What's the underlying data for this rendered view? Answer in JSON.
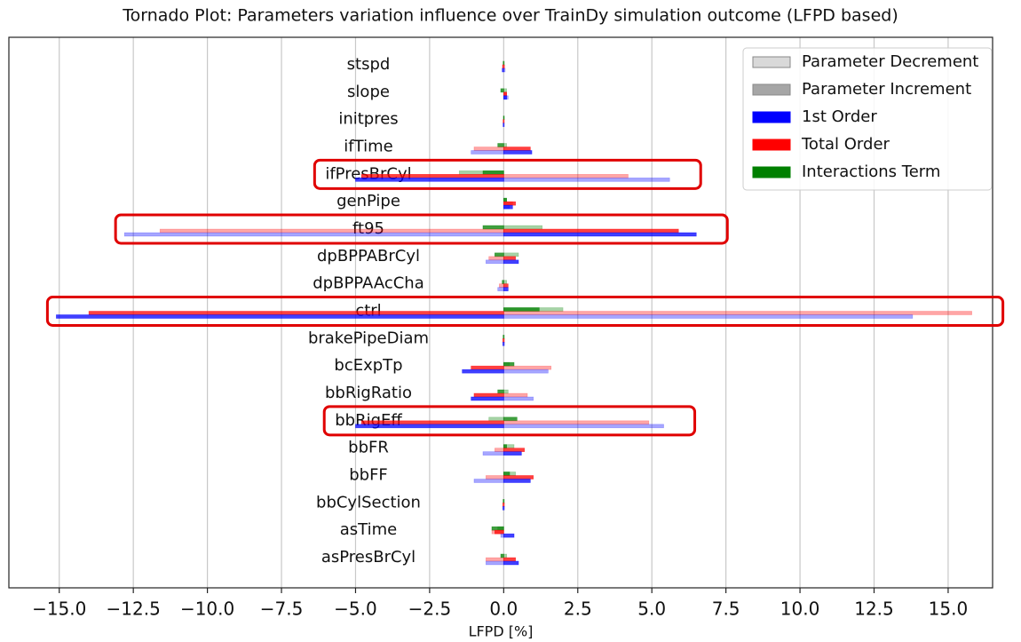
{
  "chart_data": {
    "type": "tornado",
    "title": "Tornado Plot: Parameters variation influence over TrainDy simulation outcome (LFPD based)",
    "x_label": "LFPD [%]",
    "categories": [
      "stspd",
      "slope",
      "initpres",
      "ifTime",
      "ifPresBrCyl",
      "genPipe",
      "ft95",
      "dpBPPABrCyl",
      "dpBPPAAcCha",
      "ctrl",
      "brakePipeDiam",
      "bcExpTp",
      "bbRigRatio",
      "bbRigEff",
      "bbFR",
      "bbFF",
      "bbCylSection",
      "asTime",
      "asPresBrCyl"
    ],
    "variations": [
      {
        "name": "Parameter Decrement",
        "color": "#d9d9d9",
        "opacity": 0.35,
        "key": "decrement"
      },
      {
        "name": "Parameter Increment",
        "color": "#a6a6a6",
        "opacity": 0.75,
        "key": "increment"
      }
    ],
    "series": [
      {
        "name": "1st Order",
        "color": "#0000ff",
        "decrement": [
          0.05,
          0.15,
          0.02,
          -1.1,
          5.6,
          0.2,
          -12.8,
          -0.6,
          -0.2,
          13.8,
          0.03,
          1.5,
          1.0,
          5.4,
          -0.7,
          -1.0,
          0.03,
          -0.1,
          -0.6
        ],
        "increment": [
          -0.05,
          0.1,
          -0.02,
          0.95,
          -5.0,
          0.3,
          6.5,
          0.5,
          0.15,
          -15.1,
          -0.03,
          -1.4,
          -1.1,
          -5.0,
          0.6,
          0.9,
          -0.03,
          0.35,
          0.5
        ]
      },
      {
        "name": "Total Order",
        "color": "#ff0000",
        "decrement": [
          0.04,
          0.1,
          0.02,
          -1.0,
          4.2,
          0.3,
          -11.6,
          -0.5,
          -0.15,
          15.8,
          0.03,
          1.6,
          0.8,
          4.9,
          -0.3,
          -0.6,
          0.03,
          -0.4,
          -0.6
        ],
        "increment": [
          -0.04,
          0.1,
          -0.02,
          0.9,
          -4.8,
          0.4,
          5.9,
          0.4,
          0.15,
          -14.0,
          -0.03,
          -1.1,
          -1.0,
          -4.8,
          0.7,
          1.0,
          -0.03,
          -0.3,
          0.4
        ]
      },
      {
        "name": "Interactions Term",
        "color": "#008000",
        "decrement": [
          0.02,
          0.1,
          0.01,
          0.1,
          -1.5,
          0.1,
          1.3,
          0.5,
          0.1,
          2.0,
          0.02,
          0.2,
          0.15,
          -0.5,
          0.35,
          0.4,
          0.02,
          -0.2,
          0.1
        ],
        "increment": [
          -0.02,
          -0.1,
          -0.01,
          -0.2,
          -0.7,
          0.1,
          -0.7,
          -0.3,
          -0.05,
          1.2,
          -0.02,
          0.35,
          -0.2,
          0.45,
          0.1,
          0.2,
          -0.02,
          -0.4,
          -0.1
        ]
      }
    ],
    "highlight": [
      4,
      6,
      9,
      13
    ],
    "highlight_color": "#e00000",
    "xlim": [
      -16.7,
      16.5
    ],
    "xticks": [
      {
        "value": -15,
        "label": "−15.0"
      },
      {
        "value": -12.5,
        "label": "−12.5"
      },
      {
        "value": -10,
        "label": "−10.0"
      },
      {
        "value": -7.5,
        "label": "−7.5"
      },
      {
        "value": -5,
        "label": "−5.0"
      },
      {
        "value": -2.5,
        "label": "−2.5"
      },
      {
        "value": 0,
        "label": "0.0"
      },
      2.5,
      {
        "value": 5,
        "label": "5.0"
      },
      7.5,
      {
        "value": 10,
        "label": "10.0"
      },
      12.5,
      {
        "value": 15,
        "label": "15.0"
      }
    ],
    "grid": true,
    "legend": "upper right"
  }
}
